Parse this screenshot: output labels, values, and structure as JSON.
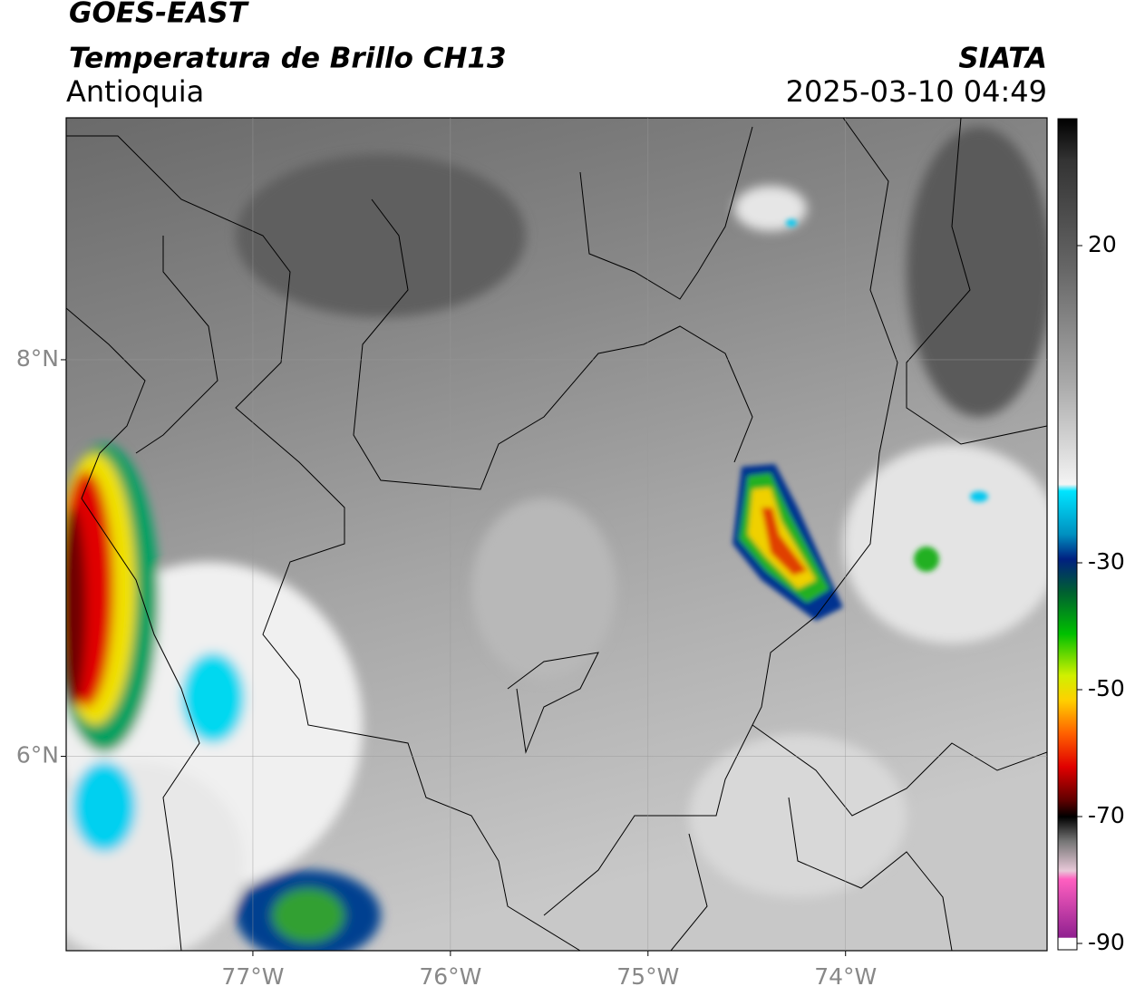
{
  "header": {
    "title": "GOES-EAST",
    "subtitle": "Temperatura de Brillo CH13",
    "region": "Antioquia",
    "source": "SIATA",
    "datetime": "2025-03-10 04:49"
  },
  "chart_data": {
    "type": "map",
    "xlim": [
      -77.945,
      -72.98
    ],
    "ylim": [
      5.02,
      9.22
    ],
    "xticks": [
      {
        "value": -77,
        "label": "77°W"
      },
      {
        "value": -76,
        "label": "76°W"
      },
      {
        "value": -75,
        "label": "75°W"
      },
      {
        "value": -74,
        "label": "74°W"
      }
    ],
    "yticks": [
      {
        "value": 8,
        "label": "8°N"
      },
      {
        "value": 6,
        "label": "6°N"
      }
    ],
    "grid": true,
    "colorbar": {
      "lim": [
        -91,
        40
      ],
      "ticks": [
        20,
        -30,
        -50,
        -70,
        -90
      ]
    }
  }
}
